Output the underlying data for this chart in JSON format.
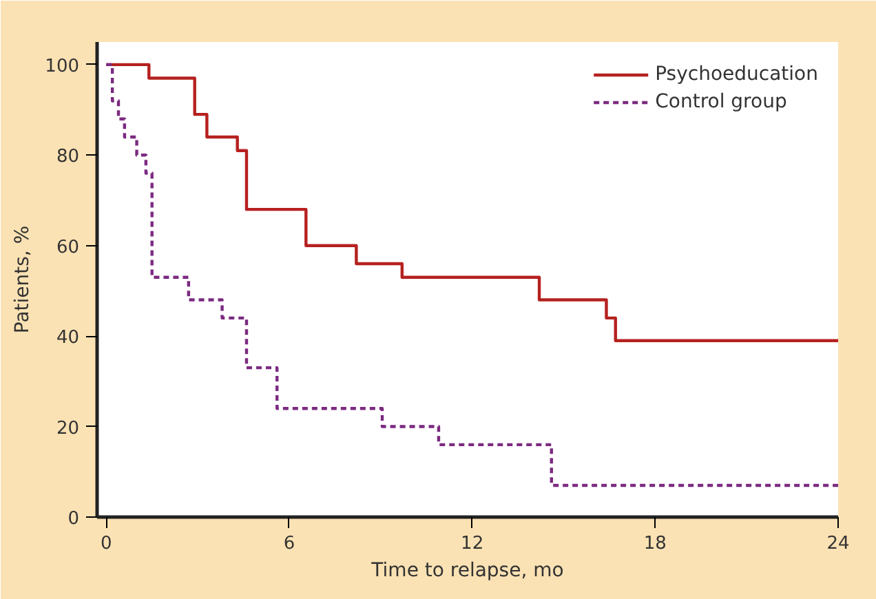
{
  "chart_data": {
    "type": "step",
    "xlabel": "Time to relapse, mo",
    "ylabel": "Patients, %",
    "xlim": [
      -0.3,
      24
    ],
    "ylim": [
      0,
      105
    ],
    "xticks": [
      0,
      6,
      12,
      18,
      24
    ],
    "yticks": [
      0,
      20,
      40,
      60,
      80,
      100
    ],
    "grid": false,
    "legend": "top right",
    "series": [
      {
        "name": "Psychoeducation",
        "color": "#b5211f",
        "line_style": "solid",
        "x": [
          0,
          1.4,
          2.9,
          3.3,
          4.3,
          4.6,
          6.55,
          8.2,
          9.7,
          14.2,
          16.4,
          16.7,
          24
        ],
        "values": [
          100,
          97,
          89,
          84,
          81,
          68,
          60,
          56,
          53,
          48,
          44,
          39,
          39
        ]
      },
      {
        "name": "Control group",
        "color": "#7b2a80",
        "line_style": "dashed",
        "x": [
          0,
          0.2,
          0.4,
          0.6,
          1.0,
          1.3,
          1.5,
          2.7,
          3.8,
          4.6,
          5.6,
          9.05,
          10.9,
          14.6,
          24
        ],
        "values": [
          100,
          92,
          88,
          84,
          80,
          76,
          53,
          48,
          44,
          33,
          24,
          20,
          16,
          7,
          7
        ]
      }
    ]
  }
}
